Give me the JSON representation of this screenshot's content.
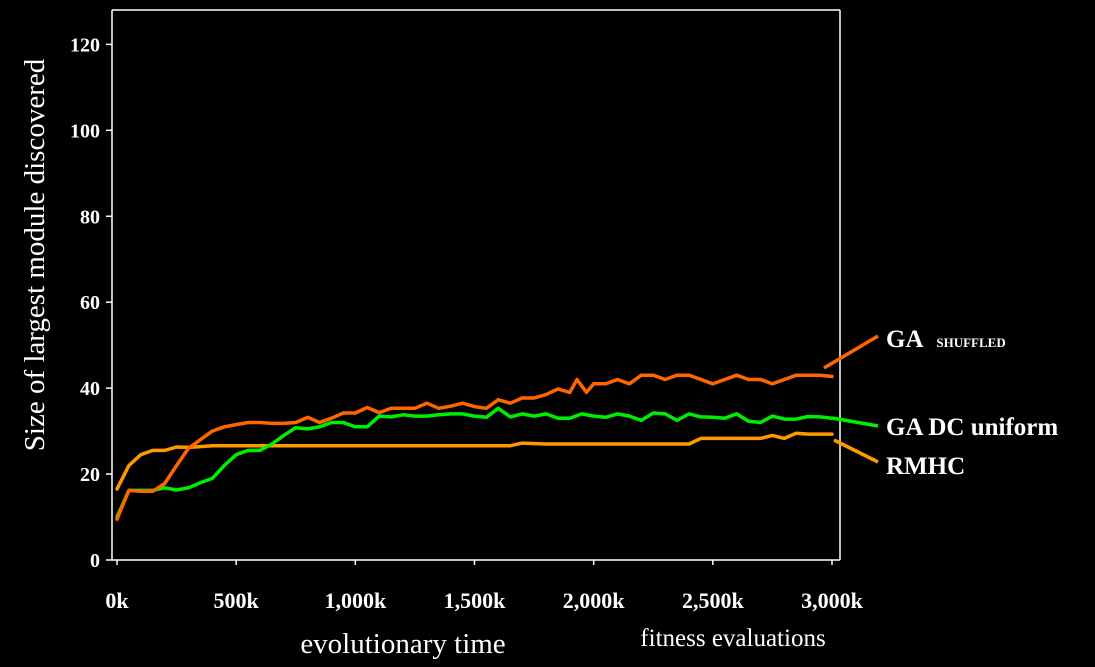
{
  "chart_data": {
    "type": "line",
    "xlabel": "evolutionary time",
    "xlabel_secondary": "fitness evaluations",
    "ylabel": "Size of largest module discovered",
    "xlim": [
      0,
      3000
    ],
    "ylim": [
      0,
      128
    ],
    "x_unit_suffix": "k",
    "x_ticks": [
      0,
      500,
      1000,
      1500,
      2000,
      2500,
      3000
    ],
    "x_tick_labels": [
      "0k",
      "500k",
      "1,000k",
      "1,500k",
      "2,000k",
      "2,500k",
      "3,000k"
    ],
    "y_ticks": [
      0,
      20,
      40,
      60,
      80,
      100,
      120
    ],
    "y_tick_labels": [
      "0",
      "20",
      "40",
      "60",
      "80",
      "100",
      "120"
    ],
    "grid": false,
    "background": "#000000",
    "series": [
      {
        "name": "GA",
        "name_suffix": "SHUFFLED",
        "color": "#ff6600",
        "x": [
          0,
          50,
          100,
          150,
          200,
          250,
          300,
          350,
          400,
          450,
          500,
          550,
          600,
          650,
          700,
          750,
          800,
          850,
          900,
          950,
          1000,
          1050,
          1100,
          1150,
          1200,
          1250,
          1300,
          1350,
          1400,
          1450,
          1500,
          1550,
          1600,
          1650,
          1700,
          1750,
          1800,
          1850,
          1900,
          1930,
          1970,
          2000,
          2050,
          2100,
          2150,
          2200,
          2250,
          2300,
          2350,
          2400,
          2450,
          2500,
          2550,
          2600,
          2650,
          2700,
          2750,
          2800,
          2850,
          2900,
          2950,
          3000
        ],
        "y": [
          9.5,
          16.2,
          16,
          16,
          17.8,
          22,
          26,
          28,
          30,
          31,
          31.5,
          32,
          32,
          31.8,
          31.8,
          32,
          33.2,
          32,
          33,
          34.2,
          34.2,
          35.5,
          34.3,
          35.3,
          35.3,
          35.3,
          36.5,
          35.3,
          35.8,
          36.5,
          35.7,
          35.3,
          37.3,
          36.5,
          37.7,
          37.7,
          38.5,
          39.8,
          39,
          42,
          39,
          41,
          41,
          42,
          41,
          43,
          43,
          42,
          43,
          43,
          42,
          41,
          42,
          43,
          42,
          42,
          41,
          42,
          43,
          43,
          43,
          42.7
        ]
      },
      {
        "name": "GA DC uniform",
        "color": "#00ee00",
        "x": [
          0,
          50,
          100,
          150,
          200,
          250,
          300,
          350,
          400,
          450,
          500,
          550,
          600,
          650,
          700,
          750,
          800,
          850,
          900,
          950,
          1000,
          1050,
          1100,
          1150,
          1200,
          1250,
          1300,
          1350,
          1400,
          1450,
          1500,
          1550,
          1600,
          1650,
          1700,
          1750,
          1800,
          1850,
          1900,
          1950,
          2000,
          2050,
          2100,
          2150,
          2200,
          2250,
          2300,
          2350,
          2400,
          2450,
          2500,
          2550,
          2600,
          2650,
          2700,
          2750,
          2800,
          2850,
          2900,
          2950,
          3000
        ],
        "y": [
          10,
          16.2,
          16.2,
          16.2,
          16.8,
          16.3,
          16.8,
          18,
          19,
          22,
          24.5,
          25.5,
          25.5,
          27,
          29,
          30.8,
          30.5,
          31,
          32,
          32,
          31,
          31,
          33.5,
          33.3,
          33.8,
          33.5,
          33.5,
          33.8,
          34,
          34,
          33.5,
          33.2,
          35.3,
          33.3,
          34,
          33.5,
          34,
          33,
          33,
          34,
          33.5,
          33.2,
          34,
          33.5,
          32.5,
          34.2,
          34,
          32.5,
          34,
          33.3,
          33.2,
          33,
          34,
          32.3,
          32,
          33.5,
          32.8,
          32.8,
          33.4,
          33.3,
          33
        ]
      },
      {
        "name": "RMHC",
        "color": "#ff9900",
        "x": [
          0,
          50,
          100,
          150,
          200,
          250,
          300,
          350,
          400,
          450,
          500,
          600,
          700,
          800,
          900,
          1000,
          1100,
          1200,
          1300,
          1400,
          1500,
          1600,
          1650,
          1700,
          1800,
          1900,
          2000,
          2100,
          2200,
          2300,
          2400,
          2450,
          2500,
          2600,
          2700,
          2750,
          2800,
          2850,
          2900,
          3000
        ],
        "y": [
          16.5,
          22,
          24.5,
          25.5,
          25.5,
          26.3,
          26.2,
          26.4,
          26.6,
          26.6,
          26.6,
          26.6,
          26.6,
          26.6,
          26.6,
          26.6,
          26.6,
          26.6,
          26.6,
          26.6,
          26.6,
          26.6,
          26.6,
          27.2,
          27,
          27,
          27,
          27,
          27,
          27,
          27,
          28.3,
          28.3,
          28.3,
          28.3,
          29,
          28.3,
          29.5,
          29.3,
          29.3
        ]
      }
    ]
  },
  "legend": {
    "ga_shuffled": {
      "label": "GA",
      "suffix": "SHUFFLED"
    },
    "ga_dc": {
      "label": "GA DC uniform"
    },
    "rmhc": {
      "label": "RMHC"
    }
  }
}
